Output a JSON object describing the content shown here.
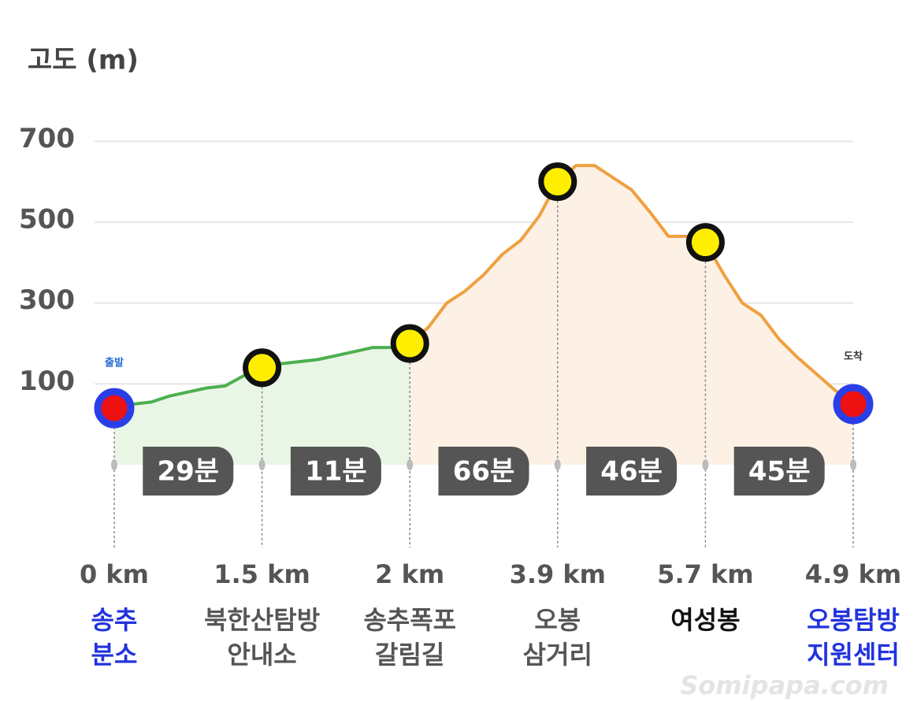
{
  "chart_data": {
    "type": "elevation-profile",
    "y_label": "고도 (m)",
    "ylim": [
      -100,
      800
    ],
    "yticks": [
      100,
      300,
      500,
      700
    ],
    "grid": true,
    "start_label": "출발",
    "end_label": "도착",
    "waypoints": [
      {
        "distance": "0 km",
        "name": [
          "송추",
          "분소"
        ],
        "name_color": "#2233dd",
        "elevation": 40,
        "marker_color": "#ee1111",
        "ring_color": "#2a3ee8"
      },
      {
        "distance": "1.5 km",
        "name": [
          "북한산탐방",
          "안내소"
        ],
        "name_color": "#555555",
        "elevation": 140,
        "marker_color": "#ffee00",
        "ring_color": "#111111"
      },
      {
        "distance": "2 km",
        "name": [
          "송추폭포",
          "갈림길"
        ],
        "name_color": "#555555",
        "elevation": 200,
        "marker_color": "#ffee00",
        "ring_color": "#111111"
      },
      {
        "distance": "3.9 km",
        "name": [
          "오봉",
          "삼거리"
        ],
        "name_color": "#555555",
        "elevation": 600,
        "marker_color": "#ffee00",
        "ring_color": "#111111"
      },
      {
        "distance": "5.7 km",
        "name": [
          "여성봉"
        ],
        "name_color": "#111111",
        "elevation": 450,
        "marker_color": "#ffee00",
        "ring_color": "#111111"
      },
      {
        "distance": "4.9 km",
        "name": [
          "오봉탐방",
          "지원센터"
        ],
        "name_color": "#2233dd",
        "elevation": 50,
        "marker_color": "#ee1111",
        "ring_color": "#2a3ee8"
      }
    ],
    "segments": [
      {
        "duration": "29분",
        "color": "#4caf50",
        "fill": "#e9f6e6",
        "values": [
          40,
          50,
          55,
          70,
          80,
          90,
          95,
          120,
          140
        ]
      },
      {
        "duration": "11분",
        "color": "#4caf50",
        "fill": "#e9f6e6",
        "values": [
          140,
          150,
          155,
          160,
          170,
          180,
          190,
          190,
          195
        ]
      },
      {
        "duration": "66분",
        "color": "#f0a040",
        "fill": "#fdf1e5",
        "values": [
          200,
          240,
          300,
          330,
          370,
          420,
          455,
          515,
          600
        ]
      },
      {
        "duration": "46분",
        "color": "#f0a040",
        "fill": "#fdf1e5",
        "values": [
          600,
          640,
          640,
          610,
          580,
          525,
          465,
          465,
          450
        ]
      },
      {
        "duration": "45분",
        "color": "#f0a040",
        "fill": "#fdf1e5",
        "values": [
          450,
          370,
          300,
          270,
          210,
          165,
          125,
          85,
          50
        ]
      }
    ],
    "watermark": "Somipapa.com"
  }
}
